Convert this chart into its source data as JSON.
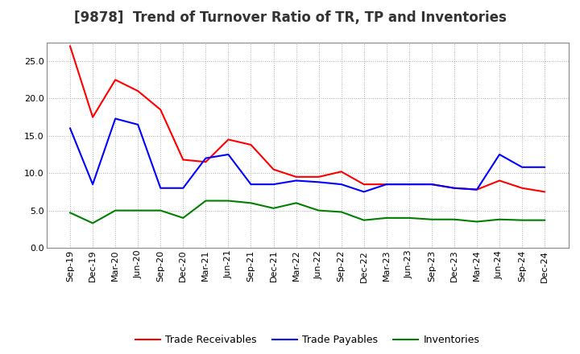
{
  "title": "[9878]  Trend of Turnover Ratio of TR, TP and Inventories",
  "ylim": [
    0.0,
    27.5
  ],
  "yticks": [
    0.0,
    5.0,
    10.0,
    15.0,
    20.0,
    25.0
  ],
  "x_labels": [
    "Sep-19",
    "Dec-19",
    "Mar-20",
    "Jun-20",
    "Sep-20",
    "Dec-20",
    "Mar-21",
    "Jun-21",
    "Sep-21",
    "Dec-21",
    "Mar-22",
    "Jun-22",
    "Sep-22",
    "Dec-22",
    "Mar-23",
    "Jun-23",
    "Sep-23",
    "Dec-23",
    "Mar-24",
    "Jun-24",
    "Sep-24",
    "Dec-24"
  ],
  "trade_receivables": [
    27.0,
    17.5,
    22.5,
    21.0,
    18.5,
    11.8,
    11.5,
    14.5,
    13.8,
    10.5,
    9.5,
    9.5,
    10.2,
    8.5,
    8.5,
    8.5,
    8.5,
    8.0,
    7.8,
    9.0,
    8.0,
    7.5
  ],
  "trade_payables": [
    16.0,
    8.5,
    17.3,
    16.5,
    8.0,
    8.0,
    12.0,
    12.5,
    8.5,
    8.5,
    9.0,
    8.8,
    8.5,
    7.5,
    8.5,
    8.5,
    8.5,
    8.0,
    7.8,
    12.5,
    10.8,
    10.8
  ],
  "inventories": [
    4.7,
    3.3,
    5.0,
    5.0,
    5.0,
    4.0,
    6.3,
    6.3,
    6.0,
    5.3,
    6.0,
    5.0,
    4.8,
    3.7,
    4.0,
    4.0,
    3.8,
    3.8,
    3.5,
    3.8,
    3.7,
    3.7
  ],
  "color_tr": "#ff0000",
  "color_tp": "#0000ff",
  "color_inv": "#008000",
  "legend_tr": "Trade Receivables",
  "legend_tp": "Trade Payables",
  "legend_inv": "Inventories",
  "bg_color": "#ffffff",
  "grid_color": "#aaaaaa",
  "title_fontsize": 12,
  "tick_fontsize": 8,
  "legend_fontsize": 9
}
